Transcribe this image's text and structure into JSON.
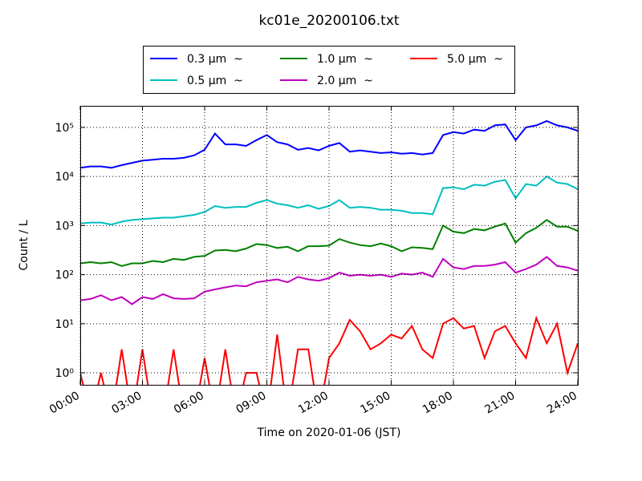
{
  "chart_data": {
    "type": "line",
    "title": "kc01e_20200106.txt",
    "x_label": "Time on 2020-01-06 (JST)",
    "y_label": "Count / L",
    "log_y": true,
    "grid": true,
    "legend_position": "top",
    "xlim": [
      0,
      24
    ],
    "xticks": [
      {
        "value": 0,
        "label": "00:00"
      },
      {
        "value": 3,
        "label": "03:00"
      },
      {
        "value": 6,
        "label": "06:00"
      },
      {
        "value": 9,
        "label": "09:00"
      },
      {
        "value": 12,
        "label": "12:00"
      },
      {
        "value": 15,
        "label": "15:00"
      },
      {
        "value": 18,
        "label": "18:00"
      },
      {
        "value": 21,
        "label": "21:00"
      },
      {
        "value": 24,
        "label": "24:00"
      }
    ],
    "ylim": [
      0.57,
      275000
    ],
    "yticks": [
      {
        "value": 1,
        "label": "10⁰"
      },
      {
        "value": 10,
        "label": "10¹"
      },
      {
        "value": 100,
        "label": "10²"
      },
      {
        "value": 1000,
        "label": "10³"
      },
      {
        "value": 10000,
        "label": "10⁴"
      },
      {
        "value": 100000,
        "label": "10⁵"
      }
    ],
    "x": [
      0,
      0.5,
      1,
      1.5,
      2,
      2.5,
      3,
      3.5,
      4,
      4.5,
      5,
      5.5,
      6,
      6.5,
      7,
      7.5,
      8,
      8.5,
      9,
      9.5,
      10,
      10.5,
      11,
      11.5,
      12,
      12.5,
      13,
      13.5,
      14,
      14.5,
      15,
      15.5,
      16,
      16.5,
      17,
      17.5,
      18,
      18.5,
      19,
      19.5,
      20,
      20.5,
      21,
      21.5,
      22,
      22.5,
      23,
      23.5,
      24
    ],
    "series": [
      {
        "name": "0.3 μm  ~",
        "color": "#0000ff",
        "values": [
          15000,
          16000,
          16000,
          15000,
          17000,
          19000,
          21000,
          22000,
          23000,
          23000,
          24000,
          27000,
          35000,
          75000,
          45000,
          45000,
          42000,
          55000,
          70000,
          50000,
          45000,
          35000,
          38000,
          34000,
          42000,
          48000,
          32000,
          34000,
          32000,
          30000,
          31000,
          29000,
          30000,
          28000,
          30000,
          70000,
          80000,
          75000,
          90000,
          85000,
          110000,
          115000,
          55000,
          100000,
          110000,
          135000,
          110000,
          100000,
          85000
        ]
      },
      {
        "name": "0.5 μm  ~",
        "color": "#00bfbf",
        "values": [
          1100,
          1150,
          1150,
          1050,
          1200,
          1300,
          1350,
          1400,
          1450,
          1450,
          1550,
          1650,
          1900,
          2500,
          2300,
          2400,
          2400,
          2900,
          3300,
          2800,
          2600,
          2300,
          2600,
          2200,
          2500,
          3300,
          2300,
          2400,
          2300,
          2100,
          2100,
          2000,
          1800,
          1800,
          1700,
          5800,
          6000,
          5500,
          6800,
          6500,
          7800,
          8500,
          3600,
          7000,
          6500,
          10000,
          7500,
          7000,
          5500
        ]
      },
      {
        "name": "1.0 μm  ~",
        "color": "#008000",
        "values": [
          170,
          180,
          170,
          180,
          150,
          170,
          170,
          190,
          180,
          210,
          200,
          230,
          240,
          310,
          320,
          300,
          340,
          420,
          400,
          350,
          370,
          300,
          380,
          380,
          390,
          530,
          450,
          400,
          380,
          430,
          380,
          300,
          360,
          350,
          330,
          1000,
          750,
          700,
          850,
          800,
          950,
          1100,
          450,
          700,
          900,
          1300,
          950,
          950,
          780
        ]
      },
      {
        "name": "2.0 μm  ~",
        "color": "#bf00bf",
        "values": [
          30,
          32,
          38,
          30,
          35,
          25,
          35,
          32,
          40,
          33,
          32,
          33,
          45,
          50,
          55,
          60,
          58,
          70,
          75,
          80,
          70,
          90,
          80,
          75,
          85,
          110,
          95,
          100,
          95,
          100,
          90,
          105,
          100,
          110,
          90,
          210,
          140,
          130,
          150,
          150,
          160,
          180,
          110,
          130,
          160,
          230,
          150,
          140,
          120
        ]
      },
      {
        "name": "5.0 μm  ~",
        "color": "#ff0000",
        "values": [
          1,
          0,
          1,
          0,
          3,
          0,
          3,
          0,
          0,
          3,
          0,
          0,
          2,
          0,
          3,
          0,
          1,
          1,
          0,
          6,
          0,
          3,
          3,
          0,
          2,
          4,
          12,
          7,
          3,
          4,
          6,
          5,
          9,
          3,
          2,
          10,
          13,
          8,
          9,
          2,
          7,
          9,
          4,
          2,
          13,
          4,
          10,
          1,
          4
        ]
      }
    ]
  }
}
